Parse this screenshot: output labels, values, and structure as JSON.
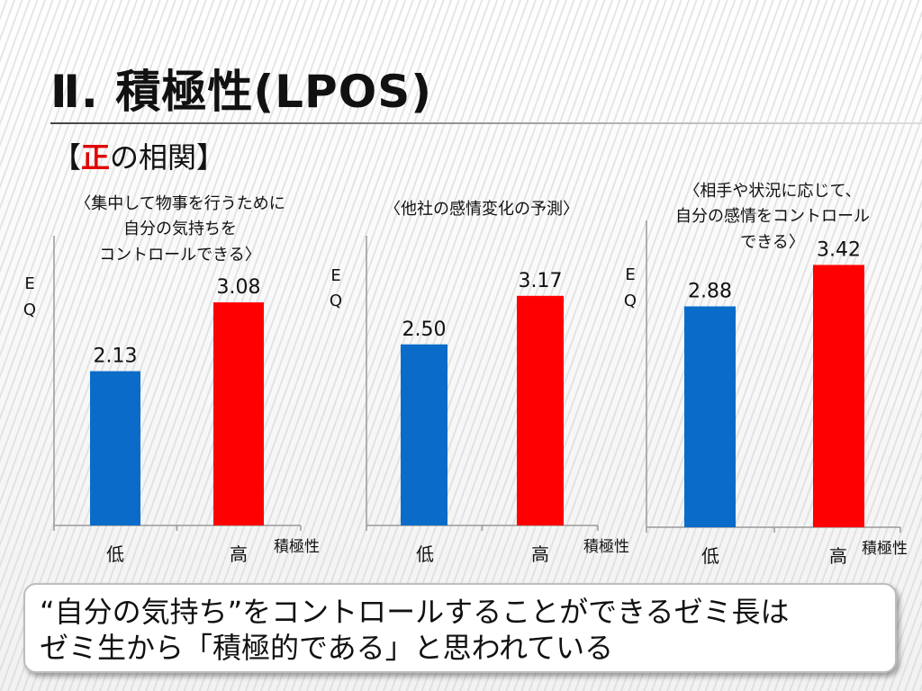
{
  "slide": {
    "title": "Ⅱ. 積極性(LPOS)",
    "subtitle_open": "【",
    "subtitle_accent": "正",
    "subtitle_rest": "の相関】",
    "accent_color": "#e00000"
  },
  "chart_data": [
    {
      "type": "bar",
      "caption_lines": [
        "〈集中して物事を行うために",
        "自分の気持ちを",
        "コントロールできる〉"
      ],
      "ylabel": [
        "E",
        "Q"
      ],
      "xlabel": "積極性",
      "categories": [
        "低",
        "高"
      ],
      "values": [
        2.13,
        3.08
      ],
      "value_labels": [
        "2.13",
        "3.08"
      ],
      "colors": [
        "#0a6cc8",
        "#ff0000"
      ],
      "ylim": [
        0,
        4
      ]
    },
    {
      "type": "bar",
      "caption_lines": [
        "〈他社の感情変化の予測〉"
      ],
      "ylabel": [
        "E",
        "Q"
      ],
      "xlabel": "積極性",
      "categories": [
        "低",
        "高"
      ],
      "values": [
        2.5,
        3.17
      ],
      "value_labels": [
        "2.50",
        "3.17"
      ],
      "colors": [
        "#0a6cc8",
        "#ff0000"
      ],
      "ylim": [
        0,
        4
      ]
    },
    {
      "type": "bar",
      "caption_lines": [
        "〈相手や状況に応じて、",
        "自分の感情をコントロール",
        "できる〉"
      ],
      "ylabel": [
        "E",
        "Q"
      ],
      "xlabel": "積極性",
      "categories": [
        "低",
        "高"
      ],
      "values": [
        2.88,
        3.42
      ],
      "value_labels": [
        "2.88",
        "3.42"
      ],
      "colors": [
        "#0a6cc8",
        "#ff0000"
      ],
      "ylim": [
        0,
        4
      ]
    }
  ],
  "footer": {
    "line1": "“自分の気持ち”をコントロールすることができるゼミ長は",
    "line2": "ゼミ生から「積極的である」と思われている"
  }
}
